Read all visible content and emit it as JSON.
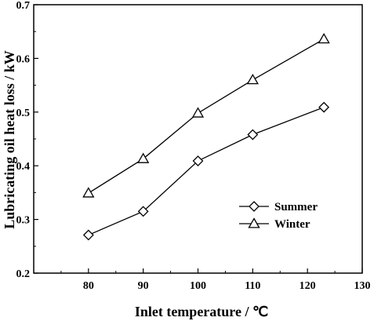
{
  "chart_data": {
    "type": "line",
    "xlabel": "Inlet temperature / ℃",
    "ylabel": "Lubricating oil heat loss  / kW",
    "xlim": [
      70,
      130
    ],
    "ylim": [
      0.2,
      0.7
    ],
    "xticks": [
      "80",
      "90",
      "100",
      "110",
      "120",
      "130"
    ],
    "yticks": [
      "0.2",
      "0.3",
      "0.4",
      "0.5",
      "0.6",
      "0.7"
    ],
    "grid": false,
    "legend_position": "lower-right",
    "series": [
      {
        "name": "Summer",
        "marker": "diamond",
        "x": [
          80,
          90,
          100,
          110,
          123
        ],
        "y": [
          0.271,
          0.315,
          0.409,
          0.458,
          0.509
        ]
      },
      {
        "name": "Winter",
        "marker": "triangle",
        "x": [
          80,
          90,
          100,
          110,
          123
        ],
        "y": [
          0.349,
          0.413,
          0.498,
          0.56,
          0.636
        ]
      }
    ]
  }
}
